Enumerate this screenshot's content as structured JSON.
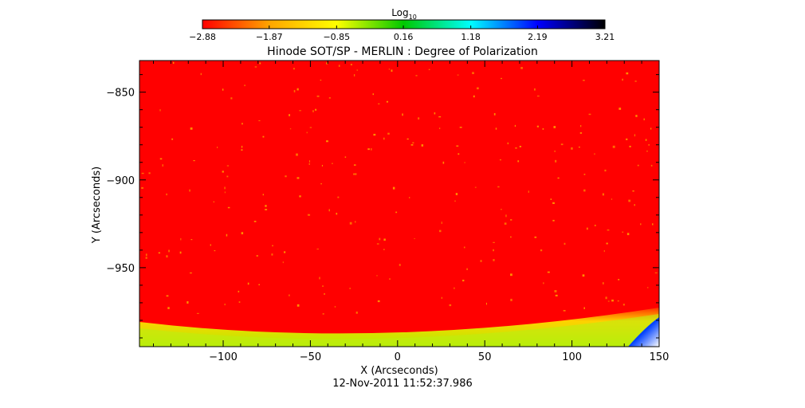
{
  "chart_data": {
    "type": "heatmap",
    "title": "Hinode SOT/SP - MERLIN : Degree of Polarization",
    "xlabel": "X (Arcseconds)",
    "ylabel": "Y (Arcseconds)",
    "subtitle_date": "12-Nov-2011 11:52:37.986",
    "xlim": [
      -148,
      150
    ],
    "ylim": [
      -995,
      -832
    ],
    "x_ticks": [
      -100,
      -50,
      0,
      50,
      100,
      150
    ],
    "x_tick_labels": [
      "−100",
      "−50",
      "0",
      "50",
      "100",
      "150"
    ],
    "y_ticks": [
      -850,
      -900,
      -950
    ],
    "y_tick_labels": [
      "−850",
      "−900",
      "−950"
    ],
    "colorbar": {
      "label": "Log",
      "label_sub": "10",
      "scale": "log10",
      "range": [
        -2.88,
        3.21
      ],
      "ticks": [
        -2.88,
        -1.87,
        -0.85,
        0.16,
        1.18,
        2.19,
        3.21
      ],
      "tick_labels": [
        "−2.88",
        "−1.87",
        "−0.85",
        "0.16",
        "1.18",
        "2.19",
        "3.21"
      ],
      "colors": [
        "#ff0000",
        "#ffa500",
        "#ffff00",
        "#00c800",
        "#00ffff",
        "#0000ff",
        "#000000"
      ]
    },
    "regions": {
      "disk_value": -2.88,
      "limb_value": -0.85,
      "corner_value": 2.19
    }
  }
}
